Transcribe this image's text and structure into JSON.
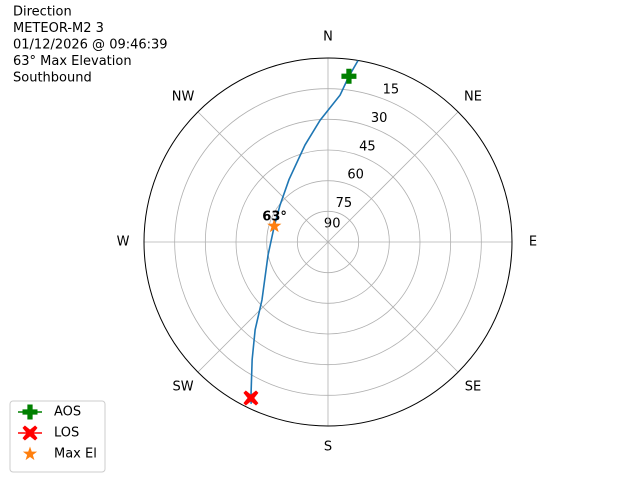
{
  "chart_data": {
    "type": "polar",
    "title_lines": [
      "Direction",
      "METEOR-M2 3",
      "01/12/2026 @ 09:46:39",
      "63° Max Elevation",
      "Southbound"
    ],
    "thetaticks": [
      {
        "value": 0,
        "label": "N"
      },
      {
        "value": 45,
        "label": "NE"
      },
      {
        "value": 90,
        "label": "E"
      },
      {
        "value": 135,
        "label": "SE"
      },
      {
        "value": 180,
        "label": "S"
      },
      {
        "value": 225,
        "label": "SW"
      },
      {
        "value": 270,
        "label": "W"
      },
      {
        "value": 315,
        "label": "NW"
      }
    ],
    "rlim": [
      90,
      0
    ],
    "rticks": [
      15,
      30,
      45,
      60,
      75,
      90
    ],
    "grid": true,
    "series": [
      {
        "color": "#1f77b4",
        "azimuth": [
          9.4,
          7.2,
          4.7,
          356.3,
          346.7,
          328,
          307.6,
          286.5,
          257.8,
          228.7,
          219.7,
          212.8,
          206.3,
          205.4
        ],
        "elevation": [
          0,
          8.3,
          17.9,
          30.3,
          41.2,
          54,
          60.4,
          62.6,
          60,
          47,
          34.2,
          21.5,
          4.9,
          2.4
        ]
      }
    ],
    "points": [
      {
        "name": "AOS",
        "color": "#008000",
        "marker": "plus",
        "azimuth": 7.2,
        "elevation": 8.3
      },
      {
        "name": "LOS",
        "color": "#ff0000",
        "marker": "x",
        "azimuth": 206.3,
        "elevation": 4.9
      },
      {
        "name": "Max El",
        "color": "#ff7f0e",
        "marker": "star",
        "azimuth": 286.5,
        "elevation": 62.6
      }
    ],
    "annotations": [
      {
        "text": "63°",
        "azimuth": 286.5,
        "elevation": 62.6
      }
    ],
    "legend": "lower left"
  }
}
